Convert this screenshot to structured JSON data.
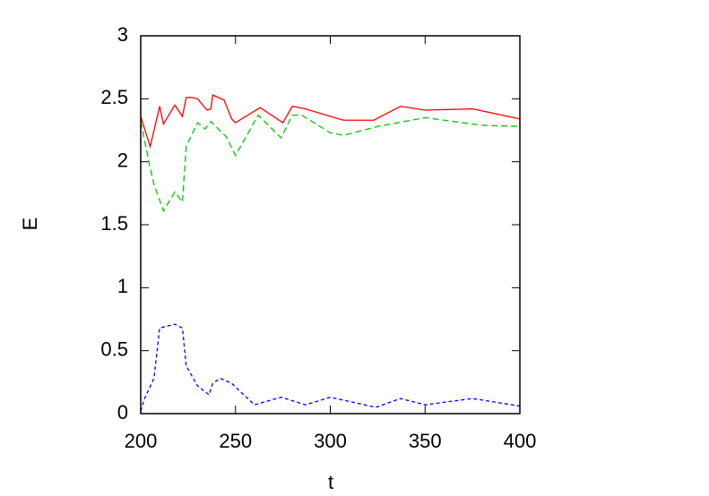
{
  "chart_data": {
    "type": "line",
    "xlabel": "t",
    "ylabel": "E",
    "xlim": [
      200,
      400
    ],
    "xticks": [
      200,
      250,
      300,
      350,
      400
    ],
    "ylim": [
      0,
      3
    ],
    "yticks": [
      0,
      0.5,
      1,
      1.5,
      2,
      2.5,
      3
    ],
    "series": [
      {
        "color": "#ff0000",
        "dash": "solid",
        "x": [
          200,
          205,
          210,
          212,
          218,
          222,
          224,
          227,
          230,
          235,
          237,
          238,
          244,
          248,
          250,
          263,
          275,
          280,
          287,
          300,
          307,
          323,
          337,
          350,
          375,
          400
        ],
        "values": [
          2.36,
          2.12,
          2.44,
          2.3,
          2.45,
          2.36,
          2.51,
          2.51,
          2.5,
          2.41,
          2.42,
          2.53,
          2.49,
          2.34,
          2.31,
          2.43,
          2.31,
          2.44,
          2.42,
          2.36,
          2.33,
          2.33,
          2.44,
          2.41,
          2.42,
          2.34
        ]
      },
      {
        "color": "#00c800",
        "dash": "dashed",
        "x": [
          200,
          205,
          207,
          212,
          218,
          222,
          224,
          230,
          234,
          237,
          245,
          250,
          262,
          274,
          280,
          285,
          300,
          307,
          325,
          350,
          380,
          400
        ],
        "values": [
          2.32,
          1.95,
          1.82,
          1.61,
          1.76,
          1.68,
          2.12,
          2.31,
          2.26,
          2.32,
          2.2,
          2.05,
          2.37,
          2.19,
          2.37,
          2.37,
          2.23,
          2.21,
          2.28,
          2.35,
          2.29,
          2.28
        ]
      },
      {
        "color": "#0000ff",
        "dash": "dotted",
        "x": [
          200,
          202,
          207,
          210,
          218,
          222,
          224,
          230,
          236,
          238,
          242,
          248,
          260,
          274,
          287,
          300,
          324,
          337,
          350,
          375,
          400
        ],
        "values": [
          0.02,
          0.12,
          0.28,
          0.68,
          0.71,
          0.68,
          0.38,
          0.22,
          0.15,
          0.24,
          0.28,
          0.24,
          0.07,
          0.13,
          0.07,
          0.13,
          0.05,
          0.12,
          0.07,
          0.12,
          0.06
        ]
      }
    ]
  }
}
